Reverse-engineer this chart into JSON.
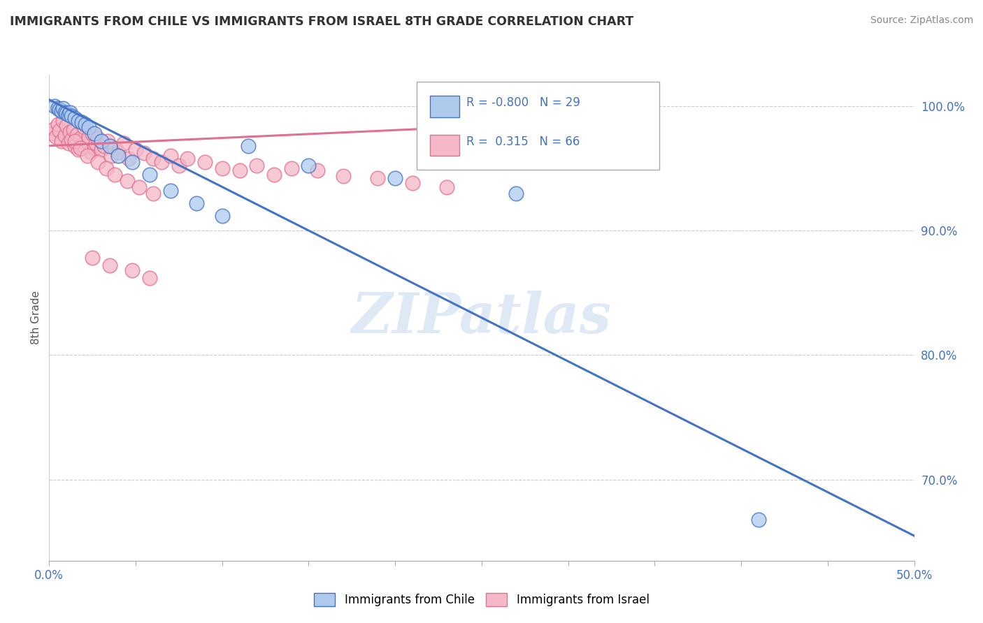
{
  "title": "IMMIGRANTS FROM CHILE VS IMMIGRANTS FROM ISRAEL 8TH GRADE CORRELATION CHART",
  "source": "Source: ZipAtlas.com",
  "ylabel": "8th Grade",
  "x_lim": [
    0.0,
    0.5
  ],
  "y_lim": [
    0.635,
    1.025
  ],
  "chile_R": -0.8,
  "chile_N": 29,
  "israel_R": 0.315,
  "israel_N": 66,
  "chile_color": "#aecbee",
  "israel_color": "#f4b8c8",
  "chile_line_color": "#4472c4",
  "israel_line_color": "#e07090",
  "watermark": "ZIPatlas",
  "chile_scatter_x": [
    0.003,
    0.005,
    0.006,
    0.007,
    0.008,
    0.009,
    0.01,
    0.011,
    0.012,
    0.013,
    0.015,
    0.017,
    0.019,
    0.021,
    0.023,
    0.026,
    0.03,
    0.035,
    0.04,
    0.048,
    0.058,
    0.07,
    0.085,
    0.1,
    0.115,
    0.15,
    0.2,
    0.27,
    0.41
  ],
  "chile_scatter_y": [
    1.0,
    0.998,
    0.997,
    0.996,
    0.998,
    0.995,
    0.994,
    0.993,
    0.995,
    0.992,
    0.99,
    0.988,
    0.987,
    0.985,
    0.983,
    0.978,
    0.972,
    0.968,
    0.96,
    0.955,
    0.945,
    0.932,
    0.922,
    0.912,
    0.968,
    0.952,
    0.942,
    0.93,
    0.668
  ],
  "israel_scatter_x": [
    0.002,
    0.003,
    0.004,
    0.005,
    0.006,
    0.007,
    0.008,
    0.009,
    0.01,
    0.011,
    0.012,
    0.013,
    0.014,
    0.015,
    0.016,
    0.017,
    0.018,
    0.019,
    0.02,
    0.021,
    0.022,
    0.023,
    0.024,
    0.025,
    0.026,
    0.027,
    0.028,
    0.03,
    0.032,
    0.034,
    0.036,
    0.038,
    0.04,
    0.043,
    0.046,
    0.05,
    0.055,
    0.06,
    0.065,
    0.07,
    0.075,
    0.08,
    0.09,
    0.1,
    0.11,
    0.12,
    0.13,
    0.14,
    0.155,
    0.17,
    0.19,
    0.21,
    0.23,
    0.015,
    0.018,
    0.022,
    0.028,
    0.033,
    0.038,
    0.045,
    0.052,
    0.06,
    0.025,
    0.035,
    0.048,
    0.058
  ],
  "israel_scatter_y": [
    0.978,
    0.982,
    0.975,
    0.985,
    0.98,
    0.972,
    0.988,
    0.976,
    0.984,
    0.97,
    0.979,
    0.973,
    0.981,
    0.968,
    0.977,
    0.965,
    0.974,
    0.969,
    0.983,
    0.967,
    0.971,
    0.975,
    0.963,
    0.978,
    0.966,
    0.97,
    0.974,
    0.965,
    0.968,
    0.972,
    0.96,
    0.966,
    0.963,
    0.97,
    0.958,
    0.965,
    0.962,
    0.958,
    0.955,
    0.96,
    0.952,
    0.958,
    0.955,
    0.95,
    0.948,
    0.952,
    0.945,
    0.95,
    0.948,
    0.944,
    0.942,
    0.938,
    0.935,
    0.972,
    0.966,
    0.96,
    0.955,
    0.95,
    0.945,
    0.94,
    0.935,
    0.93,
    0.878,
    0.872,
    0.868,
    0.862
  ]
}
